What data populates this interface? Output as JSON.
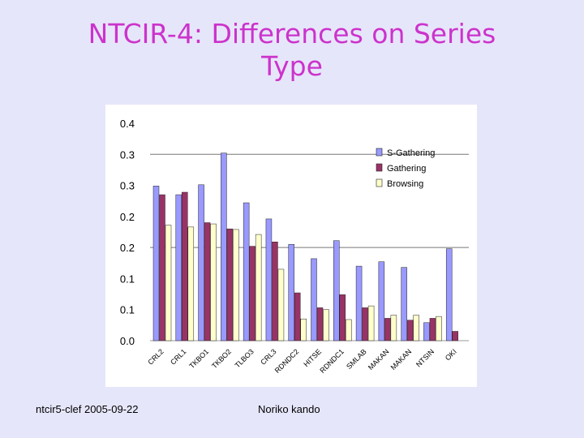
{
  "slide": {
    "title_line1": "NTCIR-4: Differences on Series",
    "title_line2": "Type",
    "footer_left": "ntcir5-clef  2005-09-22",
    "footer_center": "Noriko kando"
  },
  "chart_data": {
    "type": "bar",
    "title": "",
    "xlabel": "",
    "ylabel": "",
    "ylim": [
      0,
      0.35
    ],
    "y_ticks": [
      {
        "value": 0.0,
        "label": "0.0"
      },
      {
        "value": 0.05,
        "label": "0.1"
      },
      {
        "value": 0.1,
        "label": "0.1"
      },
      {
        "value": 0.15,
        "label": "0.2"
      },
      {
        "value": 0.2,
        "label": "0.2"
      },
      {
        "value": 0.25,
        "label": "0.3"
      },
      {
        "value": 0.3,
        "label": "0.3"
      },
      {
        "value": 0.35,
        "label": "0.4"
      }
    ],
    "categories": [
      "CRL2",
      "CRL1",
      "TKBO1",
      "TKBO2",
      "TLBO3",
      "CRL3",
      "RDNDC2",
      "HITSE",
      "RDNDC1",
      "SMLAB",
      "MAKAN",
      "MAKAN",
      "NTSIN",
      "OKI"
    ],
    "series": [
      {
        "name": "S-Gathering",
        "color": "#9999ff",
        "values": [
          0.249,
          0.235,
          0.251,
          0.302,
          0.222,
          0.196,
          0.155,
          0.132,
          0.161,
          0.12,
          0.127,
          0.118,
          0.029,
          0.148
        ]
      },
      {
        "name": "Gathering",
        "color": "#993366",
        "values": [
          0.235,
          0.239,
          0.19,
          0.18,
          0.152,
          0.159,
          0.077,
          0.053,
          0.074,
          0.053,
          0.036,
          0.033,
          0.036,
          0.015
        ]
      },
      {
        "name": "Browsing",
        "color": "#ffffcc",
        "values": [
          0.186,
          0.183,
          0.188,
          0.179,
          0.171,
          0.115,
          0.035,
          0.05,
          0.034,
          0.056,
          0.041,
          0.041,
          0.039,
          0.0
        ]
      }
    ],
    "legend_position": "right"
  }
}
